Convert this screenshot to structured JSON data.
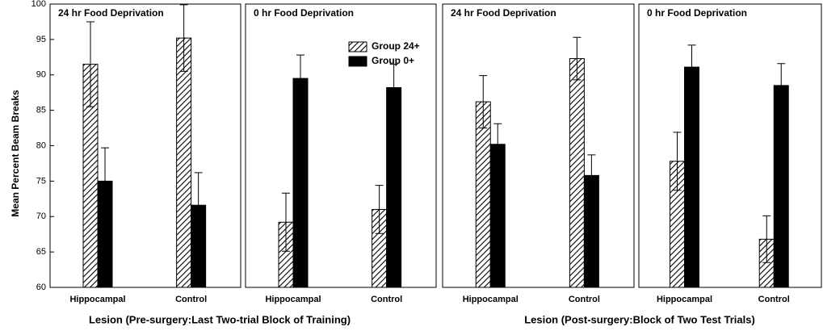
{
  "chart_data": [
    {
      "type": "bar",
      "title": "24 hr Food Deprivation",
      "ylabel": "Mean Percent Beam Breaks",
      "xlabel": "Lesion (Pre-surgery:Last Two-trial Block of Training)",
      "categories": [
        "Hippocampal",
        "Control"
      ],
      "series": [
        {
          "hatch": true,
          "color": "#000000",
          "values": [
            91.5,
            95.2
          ],
          "errors": [
            6.0,
            4.7
          ]
        },
        {
          "hatch": false,
          "color": "#000000",
          "values": [
            75.0,
            71.6
          ],
          "errors": [
            4.7,
            4.6
          ]
        }
      ],
      "ylim": [
        60,
        100
      ],
      "yticks": [
        60,
        65,
        70,
        75,
        80,
        85,
        90,
        95,
        100
      ]
    },
    {
      "type": "bar",
      "title": "0 hr Food Deprivation",
      "legend": true,
      "categories": [
        "Hippocampal",
        "Control"
      ],
      "series": [
        {
          "name": "Group 24+",
          "hatch": true,
          "color": "#000000",
          "values": [
            69.2,
            71.0
          ],
          "errors": [
            4.1,
            3.4
          ]
        },
        {
          "name": "Group 0+",
          "hatch": false,
          "color": "#000000",
          "values": [
            89.5,
            88.2
          ],
          "errors": [
            3.3,
            3.3
          ]
        }
      ],
      "ylim": [
        60,
        100
      ]
    },
    {
      "type": "bar",
      "title": "24 hr Food Deprivation",
      "xlabel": "Lesion (Post-surgery:Block of Two Test Trials)",
      "categories": [
        "Hippocampal",
        "Control"
      ],
      "series": [
        {
          "hatch": true,
          "color": "#000000",
          "values": [
            86.2,
            92.3
          ],
          "errors": [
            3.7,
            3.0
          ]
        },
        {
          "hatch": false,
          "color": "#000000",
          "values": [
            80.2,
            75.8
          ],
          "errors": [
            2.9,
            2.9
          ]
        }
      ],
      "ylim": [
        60,
        100
      ]
    },
    {
      "type": "bar",
      "title": "0 hr Food Deprivation",
      "categories": [
        "Hippocampal",
        "Control"
      ],
      "series": [
        {
          "hatch": true,
          "color": "#000000",
          "values": [
            77.8,
            66.8
          ],
          "errors": [
            4.1,
            3.3
          ]
        },
        {
          "hatch": false,
          "color": "#000000",
          "values": [
            91.1,
            88.5
          ],
          "errors": [
            3.1,
            3.1
          ]
        }
      ],
      "ylim": [
        60,
        100
      ]
    }
  ]
}
